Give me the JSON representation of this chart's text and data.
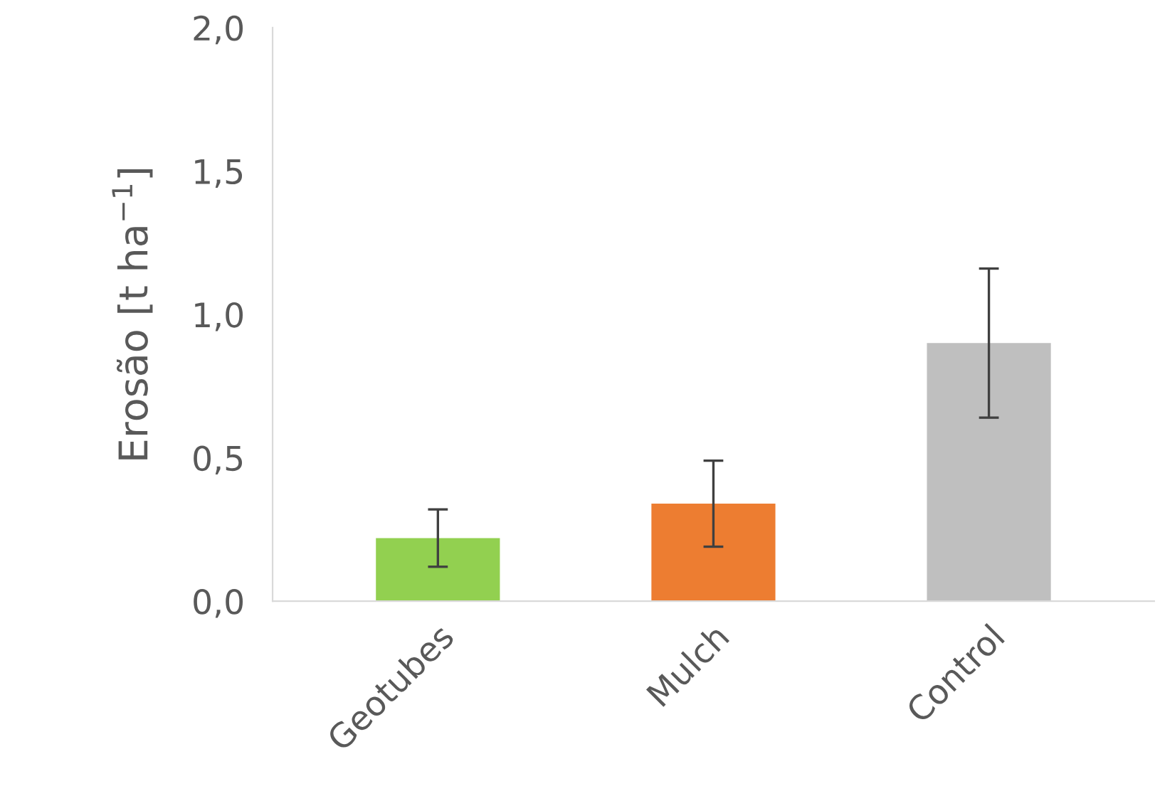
{
  "chart_data": {
    "type": "bar",
    "ylabel": "Erosão [t ha$^{−1}$]",
    "categories": [
      "Geotubes",
      "Mulch",
      "Control"
    ],
    "values": [
      0.22,
      0.34,
      0.9
    ],
    "colors": [
      "#92d050",
      "#ed7d31",
      "#bfbfbf"
    ],
    "errors": [
      0.1,
      0.15,
      0.26
    ],
    "ylim": [
      0,
      2
    ],
    "yticks": [
      {
        "value": 0,
        "label": "0,0"
      },
      {
        "value": 0.5,
        "label": "0,5"
      },
      {
        "value": 1,
        "label": "1,0"
      },
      {
        "value": 1.5,
        "label": "1,5"
      },
      {
        "value": 2,
        "label": "2,0"
      }
    ],
    "grid": false
  }
}
